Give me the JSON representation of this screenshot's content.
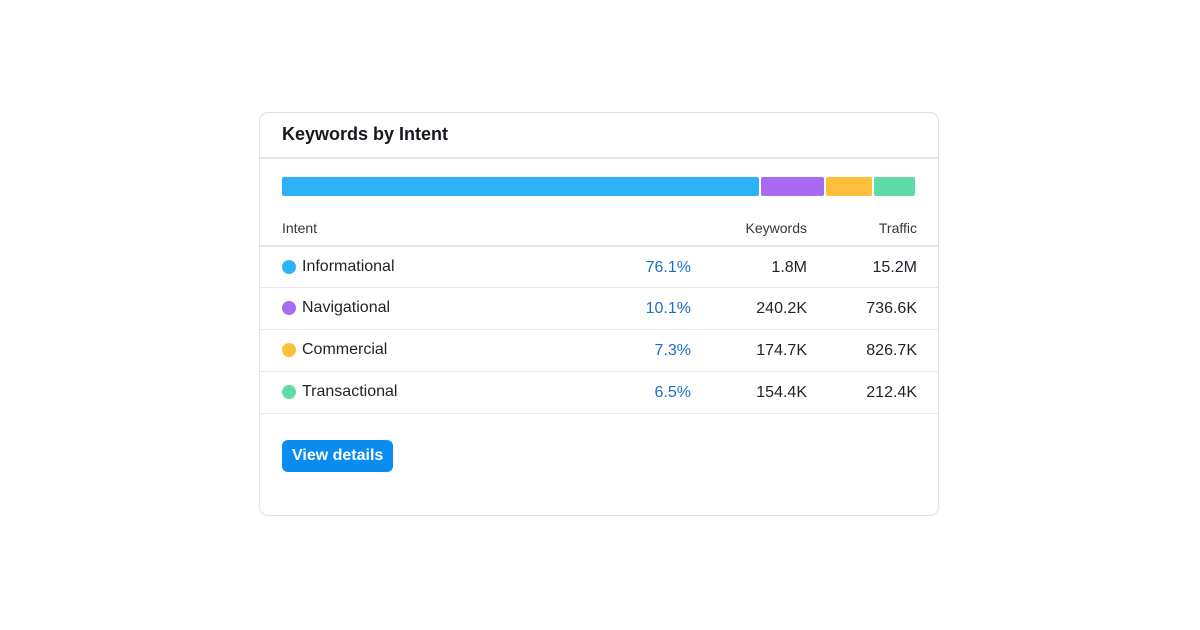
{
  "card": {
    "title": "Keywords by Intent",
    "columns": {
      "intent": "Intent",
      "keywords": "Keywords",
      "traffic": "Traffic"
    },
    "rows": [
      {
        "intent": "Informational",
        "percent": "76.1%",
        "keywords": "1.8M",
        "traffic": "15.2M",
        "color": "#2db3f5",
        "share": 76.1
      },
      {
        "intent": "Navigational",
        "percent": "10.1%",
        "keywords": "240.2K",
        "traffic": "736.6K",
        "color": "#a86bf2",
        "share": 10.1
      },
      {
        "intent": "Commercial",
        "percent": "7.3%",
        "keywords": "174.7K",
        "traffic": "826.7K",
        "color": "#fbbf3b",
        "share": 7.3
      },
      {
        "intent": "Transactional",
        "percent": "6.5%",
        "keywords": "154.4K",
        "traffic": "212.4K",
        "color": "#5fdbaa",
        "share": 6.5
      }
    ],
    "button": {
      "label": "View details",
      "color": "#0a8cf0"
    }
  }
}
